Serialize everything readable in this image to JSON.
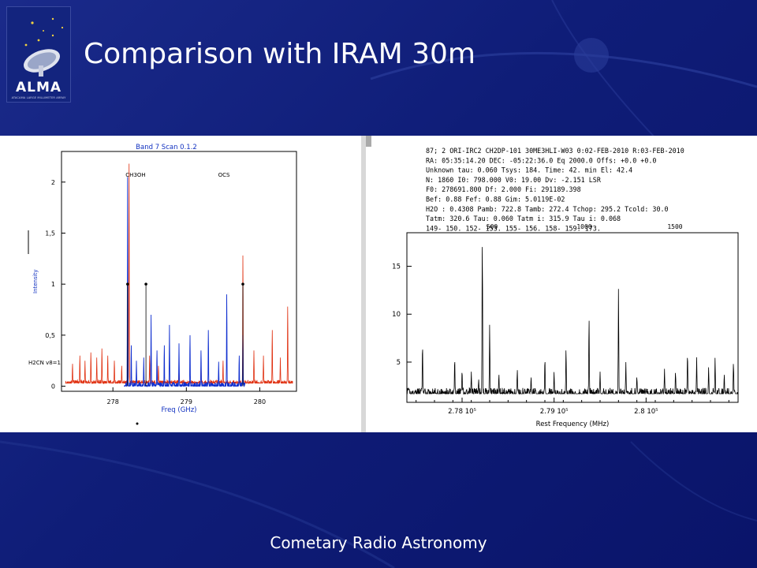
{
  "slide": {
    "title": "Comparison with IRAM 30m",
    "footer": "Cometary Radio Astronomy",
    "logo": {
      "text": "ALMA",
      "subtext": "ATACAMA LARGE MILLIMETER ARRAY"
    },
    "colors": {
      "background": "#0f1d78",
      "text": "#ffffff"
    }
  },
  "chart_data": [
    {
      "type": "line",
      "title": "Band 7 Scan 0.1.2",
      "xlabel": "Freq (GHz)",
      "ylabel": "Intensity",
      "xlim": [
        277.3,
        280.5
      ],
      "ylim": [
        -0.05,
        2.3
      ],
      "xticks": [
        278,
        279,
        280
      ],
      "yticks": [
        0,
        0.5,
        1,
        1.5,
        2
      ],
      "ytick_labels": [
        "0",
        "0,5",
        "1",
        "1,5",
        "2"
      ],
      "annotations": [
        "CH3OH",
        "OCS",
        "H2CN v8=1"
      ],
      "series": [
        {
          "color": "#e03010",
          "peaks": [
            [
              277.45,
              0.22
            ],
            [
              277.55,
              0.3
            ],
            [
              277.62,
              0.25
            ],
            [
              277.7,
              0.33
            ],
            [
              277.78,
              0.28
            ],
            [
              277.85,
              0.37
            ],
            [
              277.93,
              0.3
            ],
            [
              278.02,
              0.25
            ],
            [
              278.12,
              0.2
            ],
            [
              278.22,
              2.18
            ],
            [
              278.5,
              0.3
            ],
            [
              278.62,
              0.2
            ],
            [
              278.9,
              0.15
            ],
            [
              279.2,
              0.2
            ],
            [
              279.5,
              0.25
            ],
            [
              279.77,
              1.28
            ],
            [
              279.92,
              0.35
            ],
            [
              280.05,
              0.3
            ],
            [
              280.17,
              0.55
            ],
            [
              280.28,
              0.28
            ],
            [
              280.38,
              0.78
            ]
          ]
        },
        {
          "color": "#1030d0",
          "peaks": [
            [
              278.2,
              2.05
            ],
            [
              278.25,
              0.4
            ],
            [
              278.32,
              0.25
            ],
            [
              278.42,
              0.28
            ],
            [
              278.52,
              0.7
            ],
            [
              278.6,
              0.35
            ],
            [
              278.7,
              0.4
            ],
            [
              278.77,
              0.6
            ],
            [
              278.9,
              0.42
            ],
            [
              279.05,
              0.5
            ],
            [
              279.2,
              0.35
            ],
            [
              279.3,
              0.55
            ],
            [
              279.44,
              0.24
            ],
            [
              279.55,
              0.9
            ],
            [
              279.72,
              0.3
            ],
            [
              279.77,
              0.5
            ]
          ]
        }
      ]
    },
    {
      "type": "line",
      "xlabel": "Rest Frequency (MHz)",
      "xlim": [
        277400,
        281000
      ],
      "ylim": [
        0.8,
        18.5
      ],
      "xticks": [
        278000,
        279000,
        280000
      ],
      "xtick_labels": [
        "2.78 10⁵",
        "2.79 10⁵",
        "2.8 10⁵"
      ],
      "yticks": [
        5,
        10,
        15
      ],
      "top_axis_values": [
        "500",
        "1000",
        "1500"
      ],
      "header_lines": [
        "87;  2  ORI-IRC2      CH2DP-101      30ME3HLI-W03 0:02-FEB-2010 R:03-FEB-2010",
        "RA:  05:35:14.20  DEC:  -05:22:36.0   Eq 2000.0  Offs:      +0.0       +0.0",
        "Unknown   tau:  0.060  Tsys:  184.  Time:   42.    min  El: 42.4",
        "N:  1860 I0:  798.000          V0:  19.00      Dv:  -2.151       LSR",
        "F0:  278691.800      Df:  2.000      Fi:  291189.398",
        "Bef:   0.88      Fef:    0.88      Gim:  5.0119E-02",
        "H2O :  0.4308      Pamb: 722.8  Tamb: 272.4  Tchop: 295.2  Tcold:  30.0",
        "Tatm:  320.6  Tau:  0.060  Tatm i: 315.9  Tau i:  0.068",
        "149-    150.     152-     153.       155-     156.      158-     159.      173."
      ],
      "peaks": [
        [
          277.57,
          7.0
        ],
        [
          277.92,
          5.5
        ],
        [
          278.0,
          4.2
        ],
        [
          278.1,
          4.0
        ],
        [
          278.18,
          3.2
        ],
        [
          278.22,
          18.0
        ],
        [
          278.3,
          9.0
        ],
        [
          278.4,
          3.8
        ],
        [
          278.6,
          4.2
        ],
        [
          278.75,
          3.5
        ],
        [
          278.9,
          5.5
        ],
        [
          279.0,
          4.0
        ],
        [
          279.13,
          6.5
        ],
        [
          279.38,
          9.8
        ],
        [
          279.5,
          4.0
        ],
        [
          279.7,
          12.8
        ],
        [
          279.78,
          5.0
        ],
        [
          279.9,
          3.5
        ],
        [
          280.2,
          4.3
        ],
        [
          280.32,
          4.0
        ],
        [
          280.45,
          6.0
        ],
        [
          280.55,
          5.5
        ],
        [
          280.68,
          4.5
        ],
        [
          280.75,
          5.5
        ],
        [
          280.85,
          3.8
        ],
        [
          280.95,
          5.0
        ]
      ]
    }
  ]
}
